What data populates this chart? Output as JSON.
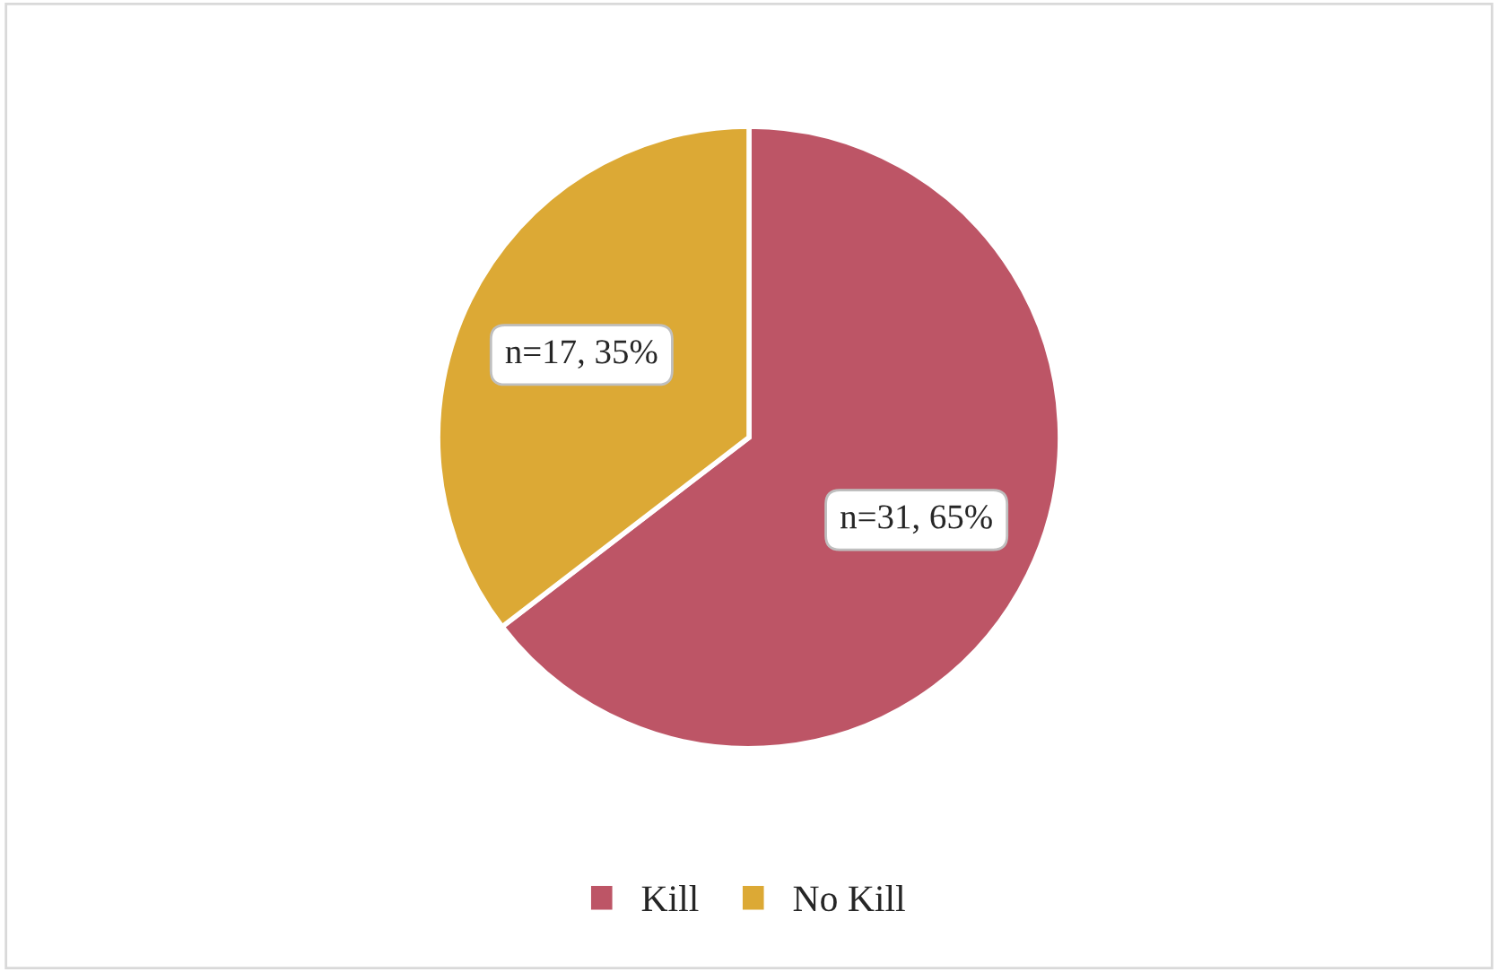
{
  "chart_data": {
    "type": "pie",
    "categories": [
      "Kill",
      "No Kill"
    ],
    "values": [
      31,
      17
    ],
    "colors": [
      "#bd5566",
      "#dca935"
    ],
    "value_labels": [
      "n=31, 65%",
      "n=17, 35%"
    ],
    "legend": "bottom"
  }
}
